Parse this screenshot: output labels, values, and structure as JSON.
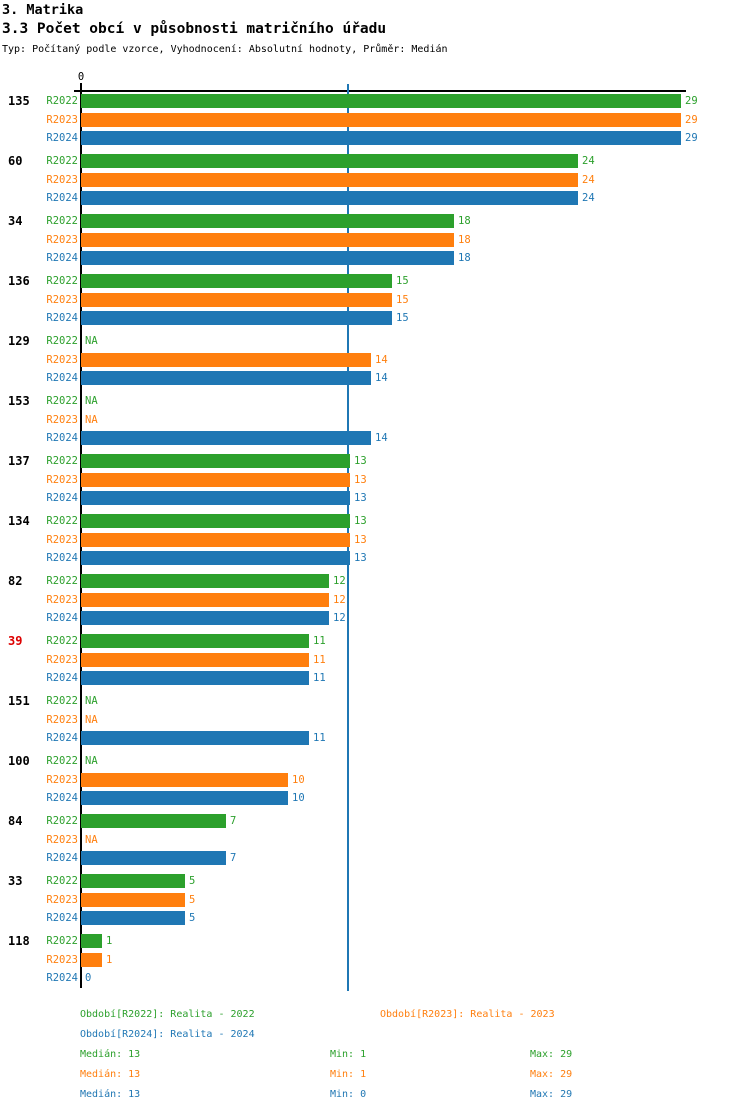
{
  "header": {
    "title": "3. Matrika",
    "subtitle": "3.3 Počet obcí v působnosti matričního úřadu",
    "meta": "Typ: Počítaný podle vzorce, Vyhodnocení: Absolutní hodnoty, Průměr: Medián"
  },
  "chart_data": {
    "type": "bar",
    "orientation": "horizontal",
    "title": "3.3 Počet obcí v působnosti matričního úřadu",
    "xlim": [
      0,
      29
    ],
    "x_tick_labels": [
      "0"
    ],
    "grid": false,
    "median_reference_line": 13,
    "na_label": "NA",
    "series_names": [
      "R2022",
      "R2023",
      "R2024"
    ],
    "series_colors": {
      "R2022": "#2ca02c",
      "R2023": "#ff7f0e",
      "R2024": "#1f77b4"
    },
    "category_label_default_color": "#000000",
    "groups": [
      {
        "category": "135",
        "label_color": "#000000",
        "values": [
          29,
          29,
          29
        ]
      },
      {
        "category": "60",
        "label_color": "#000000",
        "values": [
          24,
          24,
          24
        ]
      },
      {
        "category": "34",
        "label_color": "#000000",
        "values": [
          18,
          18,
          18
        ]
      },
      {
        "category": "136",
        "label_color": "#000000",
        "values": [
          15,
          15,
          15
        ]
      },
      {
        "category": "129",
        "label_color": "#000000",
        "values": [
          null,
          14,
          14
        ]
      },
      {
        "category": "153",
        "label_color": "#000000",
        "values": [
          null,
          null,
          14
        ]
      },
      {
        "category": "137",
        "label_color": "#000000",
        "values": [
          13,
          13,
          13
        ]
      },
      {
        "category": "134",
        "label_color": "#000000",
        "values": [
          13,
          13,
          13
        ]
      },
      {
        "category": "82",
        "label_color": "#000000",
        "values": [
          12,
          12,
          12
        ]
      },
      {
        "category": "39",
        "label_color": "#dd0000",
        "values": [
          11,
          11,
          11
        ]
      },
      {
        "category": "151",
        "label_color": "#000000",
        "values": [
          null,
          null,
          11
        ]
      },
      {
        "category": "100",
        "label_color": "#000000",
        "values": [
          null,
          10,
          10
        ]
      },
      {
        "category": "84",
        "label_color": "#000000",
        "values": [
          7,
          null,
          7
        ]
      },
      {
        "category": "33",
        "label_color": "#000000",
        "values": [
          5,
          5,
          5
        ]
      },
      {
        "category": "118",
        "label_color": "#000000",
        "values": [
          1,
          1,
          0
        ]
      }
    ]
  },
  "footer": {
    "legend": [
      {
        "text": "Období[R2022]: Realita - 2022",
        "color": "#2ca02c",
        "col": 0,
        "row": 0
      },
      {
        "text": "Období[R2023]: Realita - 2023",
        "color": "#ff7f0e",
        "col": 1,
        "row": 0
      },
      {
        "text": "Období[R2024]: Realita - 2024",
        "color": "#1f77b4",
        "col": 0,
        "row": 1
      }
    ],
    "stats": [
      {
        "color": "#2ca02c",
        "median": "Medián: 13",
        "min": "Min: 1",
        "max": "Max: 29"
      },
      {
        "color": "#ff7f0e",
        "median": "Medián: 13",
        "min": "Min: 1",
        "max": "Max: 29"
      },
      {
        "color": "#1f77b4",
        "median": "Medián: 13",
        "min": "Min: 0",
        "max": "Max: 29"
      }
    ]
  }
}
